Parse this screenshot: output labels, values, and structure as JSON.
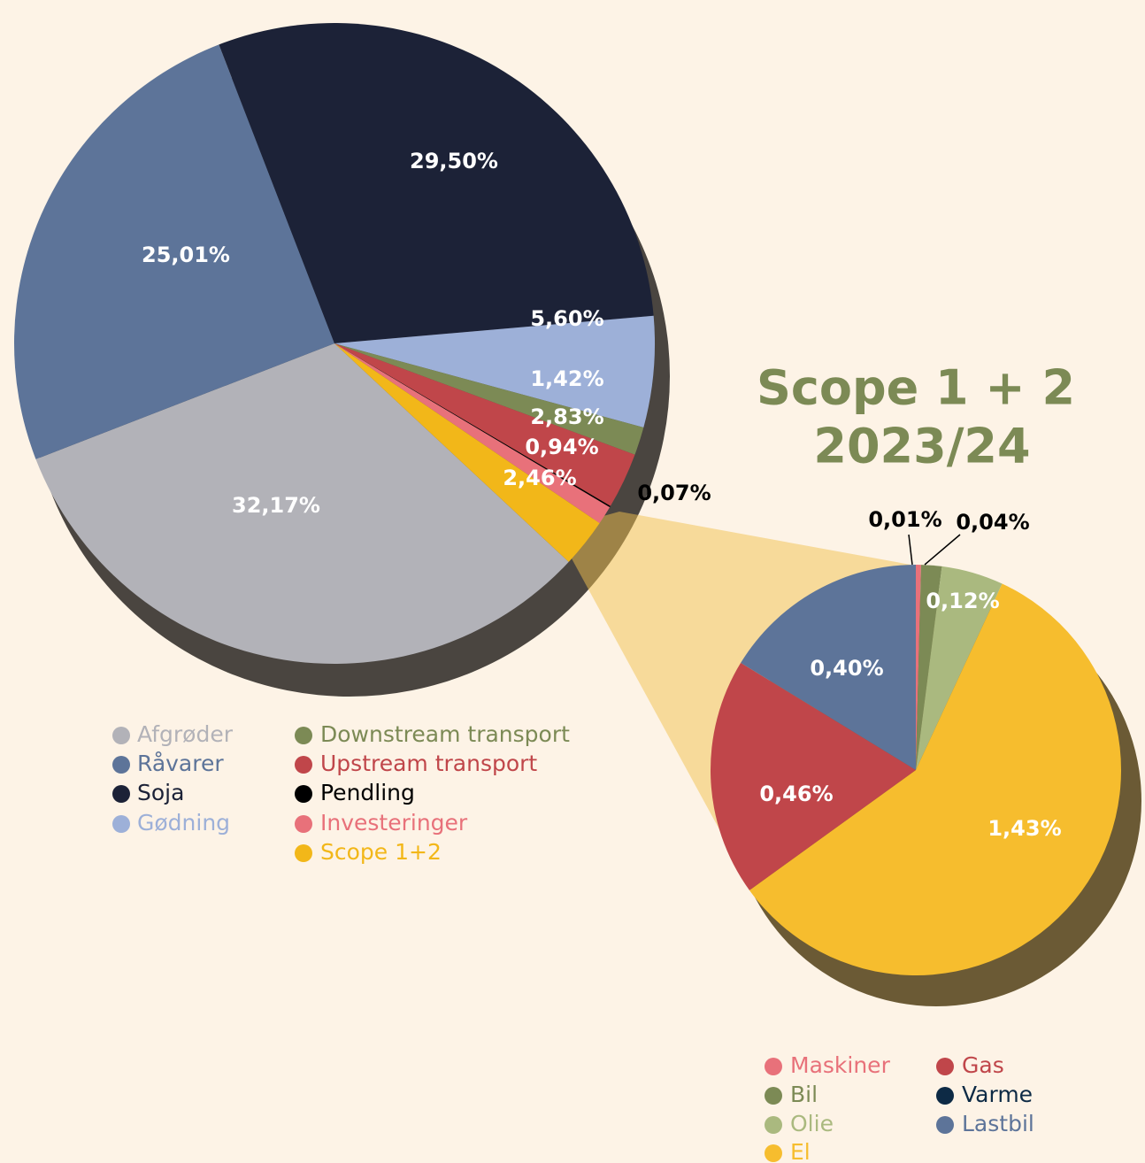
{
  "chart_data": [
    {
      "type": "pie",
      "categories": [
        "Afgrøder",
        "Råvarer",
        "Soja",
        "Gødning",
        "Downstream transport",
        "Upstream transport",
        "Pendling",
        "Investeringer",
        "Scope 1+2"
      ],
      "values": [
        32.17,
        25.01,
        29.5,
        5.6,
        1.42,
        2.83,
        0.07,
        0.94,
        2.46
      ],
      "value_labels": [
        "32,17%",
        "25,01%",
        "29,50%",
        "5,60%",
        "1,42%",
        "2,83%",
        "0,07%",
        "0,94%",
        "2,46%"
      ],
      "colors": [
        "#b2b2b8",
        "#5d7499",
        "#1c2237",
        "#9db0d8",
        "#7c8a55",
        "#c0464a",
        "#000000",
        "#e8717a",
        "#f2b719"
      ]
    },
    {
      "type": "pie",
      "title": "Scope 1 + 2",
      "subtitle": "2023/24",
      "categories": [
        "Maskiner",
        "Bil",
        "Olie",
        "El",
        "Gas",
        "Varme",
        "Lastbil"
      ],
      "values": [
        0.01,
        0.04,
        0.12,
        1.43,
        0.46,
        null,
        0.4
      ],
      "value_labels": [
        "0,01%",
        "0,04%",
        "0,12%",
        "1,43%",
        "0,46%",
        null,
        "0,40%"
      ],
      "colors": [
        "#e8717a",
        "#7c8a55",
        "#aab97f",
        "#f6bd2e",
        "#c0464a",
        "#0d2a45",
        "#5d7499"
      ]
    }
  ]
}
